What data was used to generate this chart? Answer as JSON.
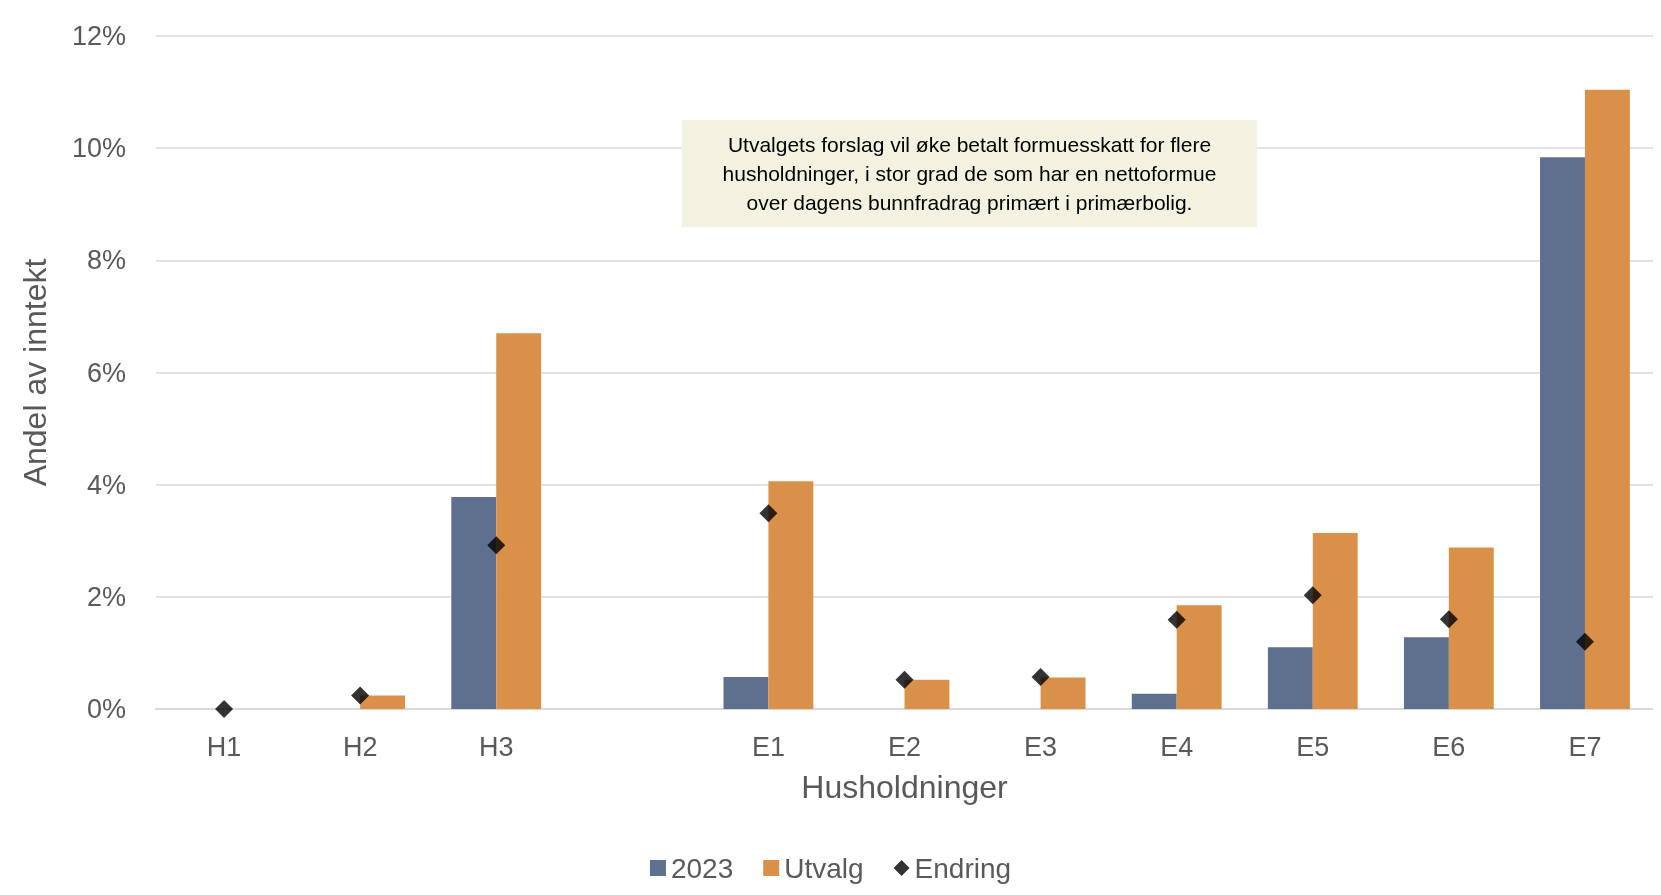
{
  "chart_data": {
    "type": "bar",
    "xlabel": "Husholdninger",
    "ylabel": "Andel av inntekt",
    "categories": [
      "H1",
      "H2",
      "H3",
      null,
      "E1",
      "E2",
      "E3",
      "E4",
      "E5",
      "E6",
      "E7"
    ],
    "series": [
      {
        "name": "2023",
        "color": "#5f6f8e",
        "values": [
          0,
          0,
          3.78,
          null,
          0.57,
          0,
          0,
          0.27,
          1.1,
          1.28,
          9.84
        ]
      },
      {
        "name": "Utvalg",
        "color": "#d9914a",
        "values": [
          0,
          0.24,
          6.7,
          null,
          4.06,
          0.52,
          0.56,
          1.85,
          3.14,
          2.88,
          11.04
        ]
      },
      {
        "name": "Endring",
        "type": "scatter",
        "marker": "diamond",
        "color": "#000000",
        "values": [
          0,
          0.24,
          2.92,
          null,
          3.49,
          0.52,
          0.57,
          1.59,
          2.03,
          1.6,
          1.2
        ]
      }
    ],
    "ylim": [
      0,
      12
    ],
    "yticks": [
      {
        "value": 0,
        "label": "0%"
      },
      {
        "value": 2,
        "label": "2%"
      },
      {
        "value": 4,
        "label": "4%"
      },
      {
        "value": 6,
        "label": "6%"
      },
      {
        "value": 8,
        "label": "8%"
      },
      {
        "value": 10,
        "label": "10%"
      },
      {
        "value": 12,
        "label": "12%"
      }
    ],
    "grid": "y",
    "legend": "bottom",
    "annotations": [
      "Utvalgets forslag vil øke betalt formuesskatt for flere husholdninger, i stor grad de som har en nettoformue over dagens bunnfradrag primært i primærbolig."
    ]
  }
}
